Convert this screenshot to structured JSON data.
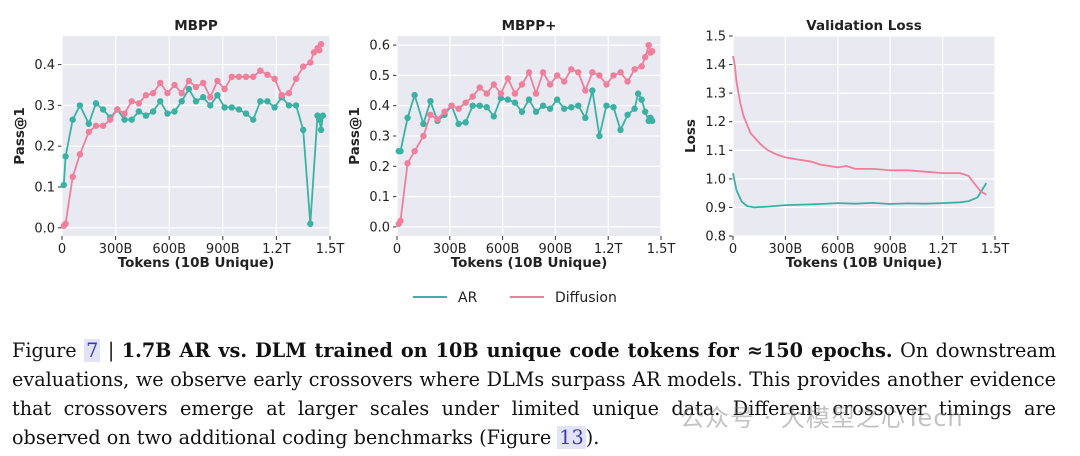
{
  "colors": {
    "ar": "#3bb1a4",
    "diffusion": "#ef7f9b",
    "grid": "#ffffff",
    "panel": "#e9e9f1"
  },
  "legend": {
    "ar_label": "AR",
    "diffusion_label": "Diffusion"
  },
  "chart_data": [
    {
      "type": "line",
      "title": "MBPP",
      "xlabel": "Tokens (10B Unique)",
      "ylabel": "Pass@1",
      "xlim": [
        0,
        1.5
      ],
      "ylim": [
        -0.02,
        0.47
      ],
      "xticks": [
        0,
        0.3,
        0.6,
        0.9,
        1.2,
        1.5
      ],
      "xtick_labels": [
        "0",
        "300B",
        "600B",
        "900B",
        "1.2T",
        "1.5T"
      ],
      "yticks": [
        0,
        0.1,
        0.2,
        0.3,
        0.4
      ],
      "ytick_labels": [
        "0.0",
        "0.1",
        "0.2",
        "0.3",
        "0.4"
      ],
      "series": [
        {
          "name": "AR",
          "x": [
            0.01,
            0.02,
            0.06,
            0.1,
            0.15,
            0.19,
            0.23,
            0.27,
            0.31,
            0.35,
            0.39,
            0.43,
            0.47,
            0.51,
            0.55,
            0.59,
            0.63,
            0.67,
            0.71,
            0.75,
            0.79,
            0.83,
            0.87,
            0.91,
            0.95,
            0.99,
            1.03,
            1.07,
            1.11,
            1.15,
            1.19,
            1.23,
            1.27,
            1.31,
            1.35,
            1.39,
            1.43,
            1.44,
            1.45,
            1.46
          ],
          "y": [
            0.105,
            0.175,
            0.265,
            0.3,
            0.255,
            0.305,
            0.29,
            0.27,
            0.29,
            0.265,
            0.265,
            0.285,
            0.275,
            0.285,
            0.31,
            0.28,
            0.285,
            0.31,
            0.34,
            0.31,
            0.32,
            0.3,
            0.325,
            0.295,
            0.295,
            0.29,
            0.28,
            0.265,
            0.31,
            0.31,
            0.295,
            0.32,
            0.3,
            0.3,
            0.24,
            0.01,
            0.275,
            0.265,
            0.24,
            0.275
          ]
        },
        {
          "name": "Diffusion",
          "x": [
            0.01,
            0.02,
            0.06,
            0.1,
            0.15,
            0.19,
            0.23,
            0.27,
            0.31,
            0.35,
            0.39,
            0.43,
            0.47,
            0.51,
            0.55,
            0.59,
            0.63,
            0.67,
            0.71,
            0.75,
            0.79,
            0.83,
            0.87,
            0.91,
            0.95,
            0.99,
            1.03,
            1.07,
            1.11,
            1.15,
            1.19,
            1.23,
            1.27,
            1.31,
            1.35,
            1.39,
            1.41,
            1.43,
            1.44,
            1.45
          ],
          "y": [
            0.005,
            0.01,
            0.125,
            0.18,
            0.235,
            0.25,
            0.25,
            0.265,
            0.29,
            0.28,
            0.31,
            0.305,
            0.325,
            0.33,
            0.355,
            0.33,
            0.35,
            0.33,
            0.36,
            0.345,
            0.355,
            0.32,
            0.36,
            0.34,
            0.37,
            0.37,
            0.37,
            0.37,
            0.385,
            0.375,
            0.365,
            0.325,
            0.33,
            0.365,
            0.395,
            0.405,
            0.43,
            0.44,
            0.435,
            0.45
          ]
        }
      ]
    },
    {
      "type": "line",
      "title": "MBPP+",
      "xlabel": "Tokens (10B Unique)",
      "ylabel": "Pass@1",
      "xlim": [
        0,
        1.5
      ],
      "ylim": [
        -0.03,
        0.63
      ],
      "xticks": [
        0,
        0.3,
        0.6,
        0.9,
        1.2,
        1.5
      ],
      "xtick_labels": [
        "0",
        "300B",
        "600B",
        "900B",
        "1.2T",
        "1.5T"
      ],
      "yticks": [
        0,
        0.1,
        0.2,
        0.3,
        0.4,
        0.5,
        0.6
      ],
      "ytick_labels": [
        "0.0",
        "0.1",
        "0.2",
        "0.3",
        "0.4",
        "0.5",
        "0.6"
      ],
      "series": [
        {
          "name": "AR",
          "x": [
            0.01,
            0.02,
            0.06,
            0.1,
            0.15,
            0.19,
            0.23,
            0.27,
            0.31,
            0.35,
            0.39,
            0.43,
            0.47,
            0.51,
            0.55,
            0.59,
            0.63,
            0.67,
            0.71,
            0.75,
            0.79,
            0.83,
            0.87,
            0.91,
            0.95,
            0.99,
            1.03,
            1.07,
            1.11,
            1.15,
            1.19,
            1.23,
            1.27,
            1.31,
            1.35,
            1.37,
            1.39,
            1.41,
            1.43,
            1.44,
            1.45
          ],
          "y": [
            0.25,
            0.25,
            0.36,
            0.435,
            0.34,
            0.415,
            0.35,
            0.37,
            0.4,
            0.34,
            0.345,
            0.4,
            0.4,
            0.395,
            0.365,
            0.425,
            0.42,
            0.41,
            0.38,
            0.42,
            0.38,
            0.4,
            0.39,
            0.42,
            0.39,
            0.395,
            0.4,
            0.36,
            0.45,
            0.3,
            0.4,
            0.395,
            0.32,
            0.37,
            0.39,
            0.44,
            0.42,
            0.38,
            0.35,
            0.36,
            0.35
          ]
        },
        {
          "name": "Diffusion",
          "x": [
            0.01,
            0.02,
            0.06,
            0.1,
            0.15,
            0.19,
            0.23,
            0.27,
            0.31,
            0.35,
            0.39,
            0.43,
            0.47,
            0.51,
            0.55,
            0.59,
            0.63,
            0.67,
            0.71,
            0.75,
            0.79,
            0.83,
            0.87,
            0.91,
            0.95,
            0.99,
            1.03,
            1.07,
            1.11,
            1.15,
            1.19,
            1.23,
            1.27,
            1.31,
            1.35,
            1.39,
            1.41,
            1.43,
            1.44,
            1.45
          ],
          "y": [
            0.01,
            0.02,
            0.21,
            0.25,
            0.3,
            0.37,
            0.355,
            0.38,
            0.4,
            0.39,
            0.41,
            0.43,
            0.46,
            0.44,
            0.47,
            0.44,
            0.49,
            0.44,
            0.47,
            0.51,
            0.44,
            0.51,
            0.47,
            0.5,
            0.48,
            0.52,
            0.51,
            0.45,
            0.51,
            0.5,
            0.47,
            0.5,
            0.51,
            0.48,
            0.52,
            0.53,
            0.56,
            0.6,
            0.575,
            0.58
          ]
        }
      ]
    },
    {
      "type": "line",
      "title": "Validation Loss",
      "xlabel": "Tokens (10B Unique)",
      "ylabel": "Loss",
      "xlim": [
        0,
        1.5
      ],
      "ylim": [
        0.8,
        1.5
      ],
      "xticks": [
        0,
        0.3,
        0.6,
        0.9,
        1.2,
        1.5
      ],
      "xtick_labels": [
        "0",
        "300B",
        "600B",
        "900B",
        "1.2T",
        "1.5T"
      ],
      "yticks": [
        0.8,
        0.9,
        1.0,
        1.1,
        1.2,
        1.3,
        1.4,
        1.5
      ],
      "ytick_labels": [
        "0.8",
        "0.9",
        "1.0",
        "1.1",
        "1.2",
        "1.3",
        "1.4",
        "1.5"
      ],
      "series": [
        {
          "name": "AR",
          "x": [
            0.0,
            0.02,
            0.05,
            0.08,
            0.12,
            0.2,
            0.3,
            0.4,
            0.5,
            0.6,
            0.7,
            0.8,
            0.9,
            1.0,
            1.1,
            1.2,
            1.3,
            1.35,
            1.4,
            1.45
          ],
          "y": [
            1.02,
            0.96,
            0.92,
            0.905,
            0.9,
            0.903,
            0.908,
            0.91,
            0.912,
            0.915,
            0.913,
            0.916,
            0.912,
            0.914,
            0.913,
            0.915,
            0.918,
            0.922,
            0.935,
            0.985
          ]
        },
        {
          "name": "Diffusion",
          "x": [
            0.0,
            0.01,
            0.02,
            0.04,
            0.06,
            0.08,
            0.1,
            0.13,
            0.16,
            0.2,
            0.25,
            0.3,
            0.35,
            0.4,
            0.45,
            0.5,
            0.55,
            0.6,
            0.65,
            0.7,
            0.8,
            0.9,
            1.0,
            1.1,
            1.2,
            1.25,
            1.3,
            1.35,
            1.38,
            1.42,
            1.45
          ],
          "y": [
            1.43,
            1.4,
            1.34,
            1.27,
            1.22,
            1.19,
            1.16,
            1.14,
            1.12,
            1.1,
            1.085,
            1.075,
            1.07,
            1.065,
            1.06,
            1.05,
            1.045,
            1.04,
            1.045,
            1.035,
            1.035,
            1.03,
            1.03,
            1.025,
            1.02,
            1.02,
            1.02,
            1.01,
            0.985,
            0.955,
            0.945
          ]
        }
      ]
    }
  ],
  "caption": {
    "figure_word": "Figure",
    "figure_number": "7",
    "separator": " | ",
    "bold_title": "1.7B AR vs. DLM trained on 10B unique code tokens for ≈150 epochs.",
    "body_part1": " On downstream evaluations, we observe early crossovers where DLMs surpass AR models.  This provides another evidence that crossovers emerge at larger scales under limited unique data.  Different crossover timings are observed on two additional coding benchmarks (Figure ",
    "ref_number": "13",
    "body_part2": ")."
  },
  "watermark": "公众号 · 大模型之心Tech"
}
